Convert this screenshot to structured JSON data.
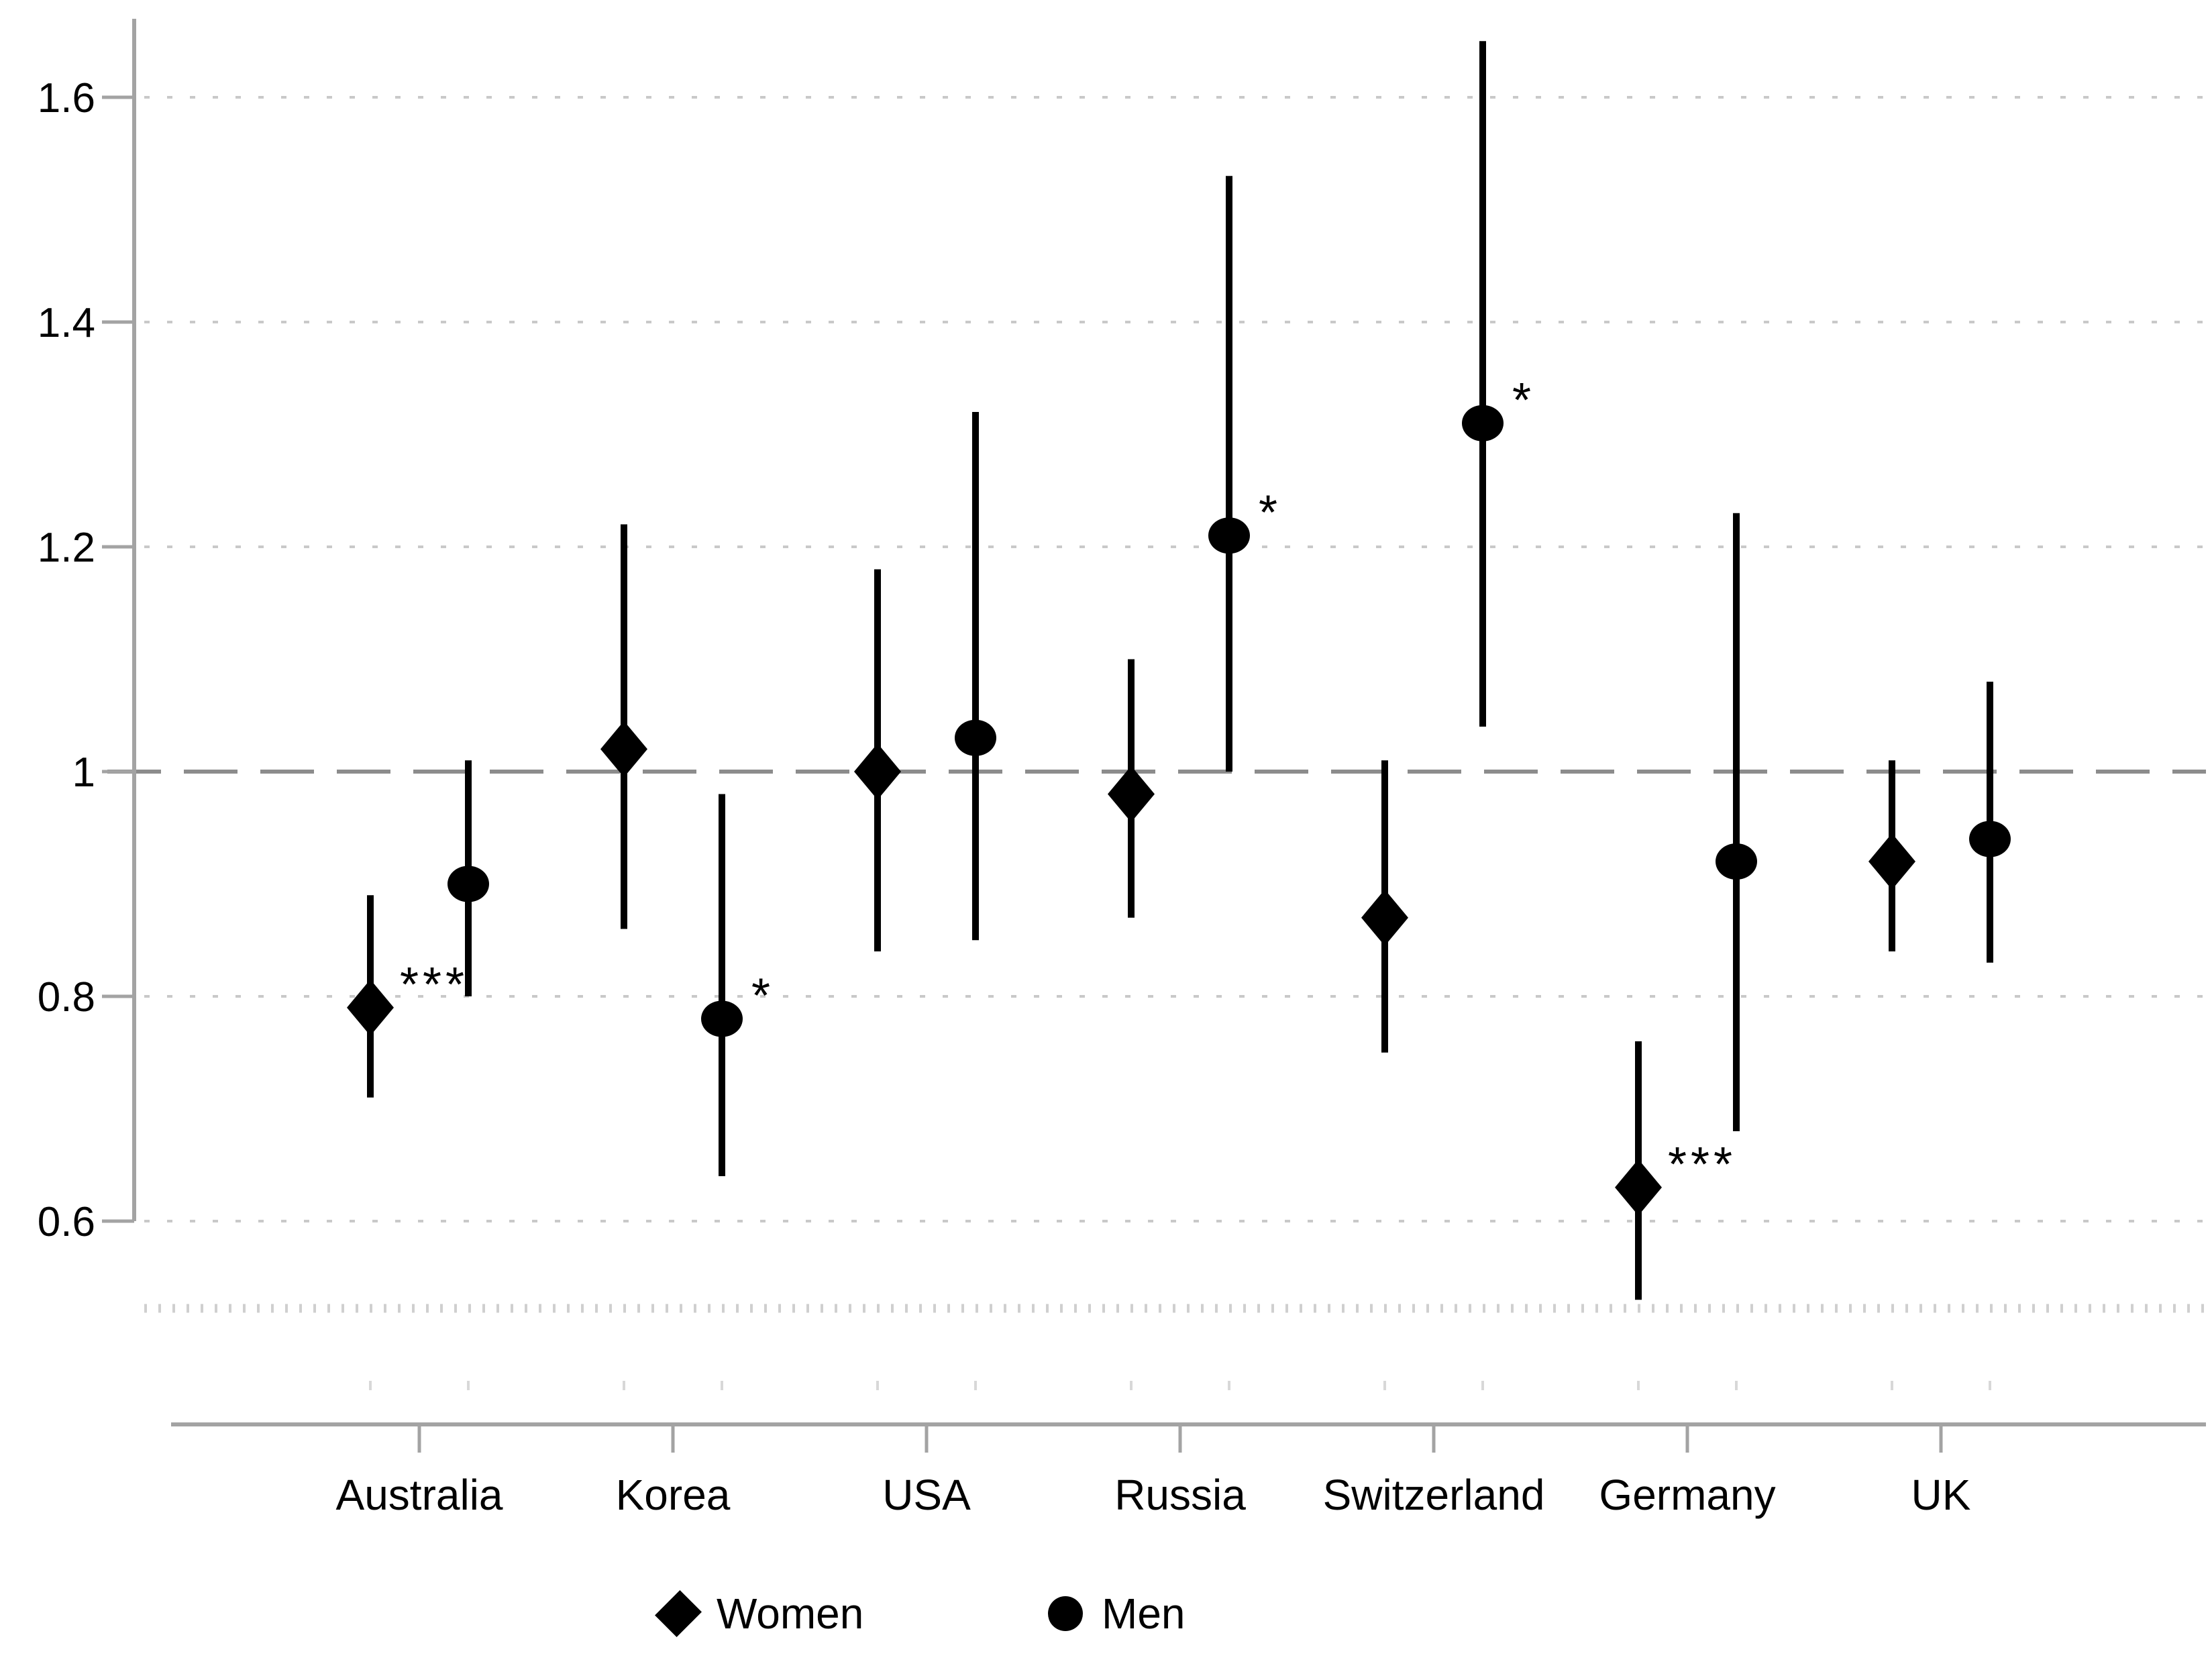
{
  "chart_data": {
    "type": "scatter",
    "subtype": "point-estimates-with-confidence-intervals",
    "title": "",
    "xlabel": "",
    "ylabel": "",
    "categories": [
      "Australia",
      "Korea",
      "USA",
      "Russia",
      "Switzerland",
      "Germany",
      "UK"
    ],
    "series": [
      {
        "name": "Women",
        "marker": "diamond",
        "estimates": [
          0.79,
          1.02,
          1.0,
          0.98,
          0.87,
          0.63,
          0.92
        ],
        "ci_low": [
          0.71,
          0.86,
          0.84,
          0.87,
          0.75,
          0.53,
          0.84
        ],
        "ci_high": [
          0.89,
          1.22,
          1.18,
          1.1,
          1.01,
          0.76,
          1.01
        ],
        "significance": [
          "***",
          "",
          "",
          "",
          "",
          "***",
          ""
        ]
      },
      {
        "name": "Men",
        "marker": "circle",
        "estimates": [
          0.9,
          0.78,
          1.03,
          1.21,
          1.31,
          0.92,
          0.94
        ],
        "ci_low": [
          0.8,
          0.64,
          0.85,
          1.0,
          1.04,
          0.68,
          0.83
        ],
        "ci_high": [
          1.01,
          0.98,
          1.32,
          1.53,
          1.65,
          1.23,
          1.08
        ],
        "significance": [
          "",
          "*",
          "",
          "*",
          "*",
          "",
          ""
        ]
      }
    ],
    "yticks": [
      0.6,
      0.8,
      1,
      1.2,
      1.4,
      1.6
    ],
    "ytick_labels": [
      "0.6",
      "0.8",
      "1",
      "1.2",
      "1.4",
      "1.6"
    ],
    "ylim": [
      0.5,
      1.67
    ],
    "reference_line": 1,
    "grid": "horizontal dotted lines at labeled ticks",
    "legend_position": "bottom-center"
  },
  "legend": {
    "women_label": "Women",
    "men_label": "Men"
  },
  "colors": {
    "marker": "#000000",
    "ci_line": "#000000",
    "text": "#000000",
    "grid_dotted": "#c9c9c9",
    "minor_dash_row": "#cfcfcf",
    "column_minor_tick": "#d8d8d8",
    "reference_dashed": "#8c8c8c",
    "axis": "#a3a3a3",
    "background": "#ffffff"
  }
}
